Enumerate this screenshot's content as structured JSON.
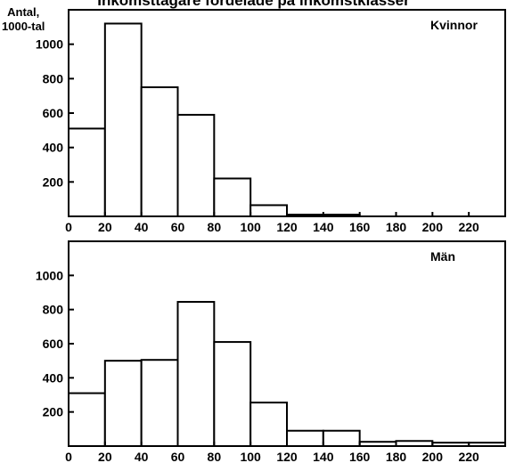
{
  "title": "Inkomsttagare fördelade på inkomstklasser",
  "ylabel_line1": "Antal,",
  "ylabel_line2": "1000-tal",
  "chart_data": [
    {
      "type": "bar",
      "panel_label": "Kvinnor",
      "bin_edges": [
        0,
        20,
        40,
        60,
        80,
        100,
        120,
        140,
        160,
        180,
        200,
        220,
        240
      ],
      "values": [
        510,
        1120,
        750,
        590,
        220,
        65,
        10,
        10,
        0,
        0,
        0,
        0
      ],
      "xticks": [
        0,
        20,
        40,
        60,
        80,
        100,
        120,
        140,
        160,
        180,
        200,
        220
      ],
      "yticks": [
        200,
        400,
        600,
        800,
        1000
      ],
      "xlim": [
        0,
        240
      ],
      "ylim": [
        0,
        1200
      ],
      "grid": false,
      "legend": "top-right"
    },
    {
      "type": "bar",
      "panel_label": "Män",
      "bin_edges": [
        0,
        20,
        40,
        60,
        80,
        100,
        120,
        140,
        160,
        180,
        200,
        220,
        240
      ],
      "values": [
        310,
        500,
        505,
        845,
        610,
        255,
        90,
        90,
        25,
        30,
        20,
        20
      ],
      "xticks": [
        0,
        20,
        40,
        60,
        80,
        100,
        120,
        140,
        160,
        180,
        200,
        220
      ],
      "yticks": [
        200,
        400,
        600,
        800,
        1000
      ],
      "xlim": [
        0,
        240
      ],
      "ylim": [
        0,
        1200
      ],
      "grid": false,
      "legend": "top-right"
    }
  ]
}
